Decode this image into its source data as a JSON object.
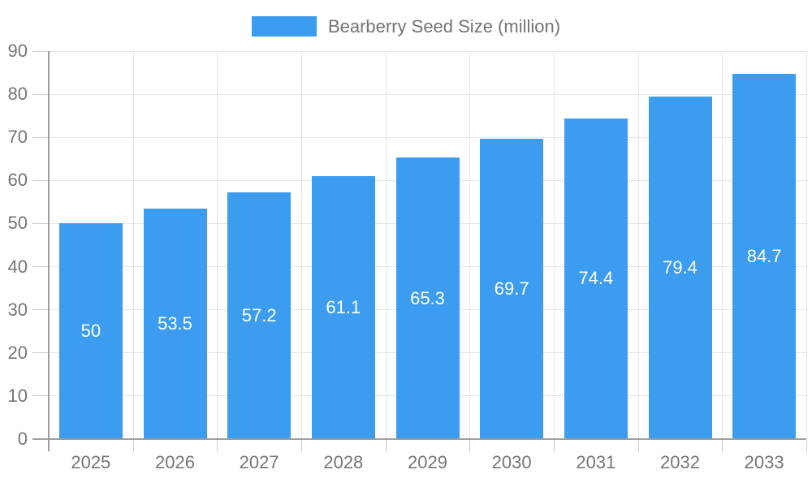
{
  "legend": {
    "label": "Bearberry Seed Size (million)"
  },
  "colors": {
    "bar": "#3B9CF0",
    "axis": "#9E9E9E",
    "grid": "#E4E4E4",
    "tick": "#CCCCCC",
    "tick_label": "#757575",
    "value_label": "#FFFFFF",
    "legend_label": "#737373",
    "background": "#FFFFFF"
  },
  "chart_data": {
    "type": "bar",
    "title": "",
    "xlabel": "",
    "ylabel": "",
    "categories": [
      "2025",
      "2026",
      "2027",
      "2028",
      "2029",
      "2030",
      "2031",
      "2032",
      "2033"
    ],
    "values": [
      50,
      53.5,
      57.2,
      61.1,
      65.3,
      69.7,
      74.4,
      79.4,
      84.7
    ],
    "series_name": "Bearberry Seed Size (million)",
    "ylim": [
      0,
      90
    ],
    "ytick_step": 10,
    "ytick_labels": [
      "0",
      "10",
      "20",
      "30",
      "40",
      "50",
      "60",
      "70",
      "80",
      "90"
    ],
    "grid": true,
    "legend_position": "top",
    "value_labels": "inside-center"
  }
}
